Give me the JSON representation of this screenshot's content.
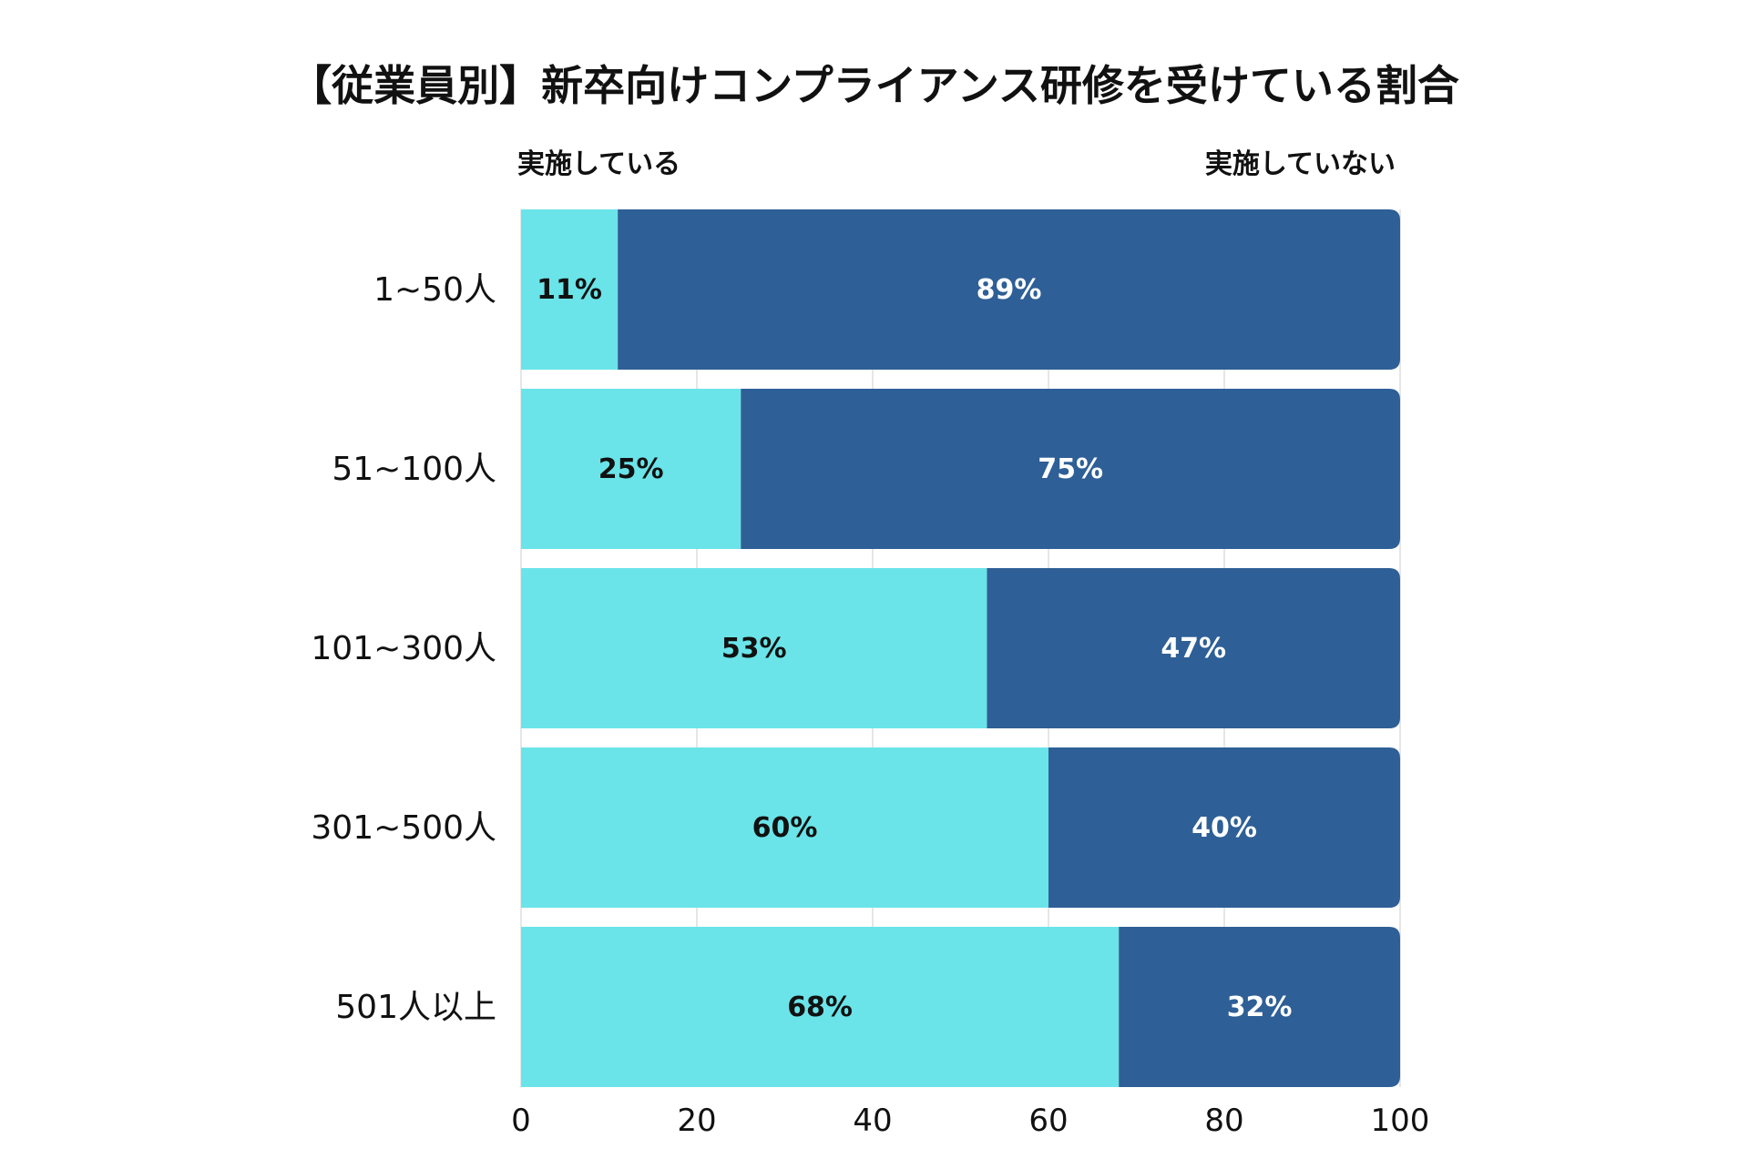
{
  "chart_data": {
    "type": "bar",
    "orientation": "horizontal",
    "stacked": true,
    "title": "【従業員別】新卒向けコンプライアンス研修を受けている割合",
    "categories": [
      "1~50人",
      "51~100人",
      "101~300人",
      "301~500人",
      "501人以上"
    ],
    "series": [
      {
        "name": "実施している",
        "color": "#6ae4e8",
        "values": [
          11,
          25,
          53,
          60,
          68
        ],
        "labels": [
          "11%",
          "25%",
          "53%",
          "60%",
          "68%"
        ]
      },
      {
        "name": "実施していない",
        "color": "#2e5f96",
        "values": [
          89,
          75,
          47,
          40,
          32
        ],
        "labels": [
          "89%",
          "75%",
          "47%",
          "40%",
          "32%"
        ]
      }
    ],
    "xlim": [
      0,
      100
    ],
    "xticks": [
      "0",
      "20",
      "40",
      "60",
      "80",
      "100"
    ],
    "xlabel": "",
    "ylabel": "",
    "grid": true,
    "legend": "top",
    "colors": {
      "grid": "#e6e6e6",
      "text_dark": "#111111",
      "text_light": "#ffffff"
    }
  }
}
